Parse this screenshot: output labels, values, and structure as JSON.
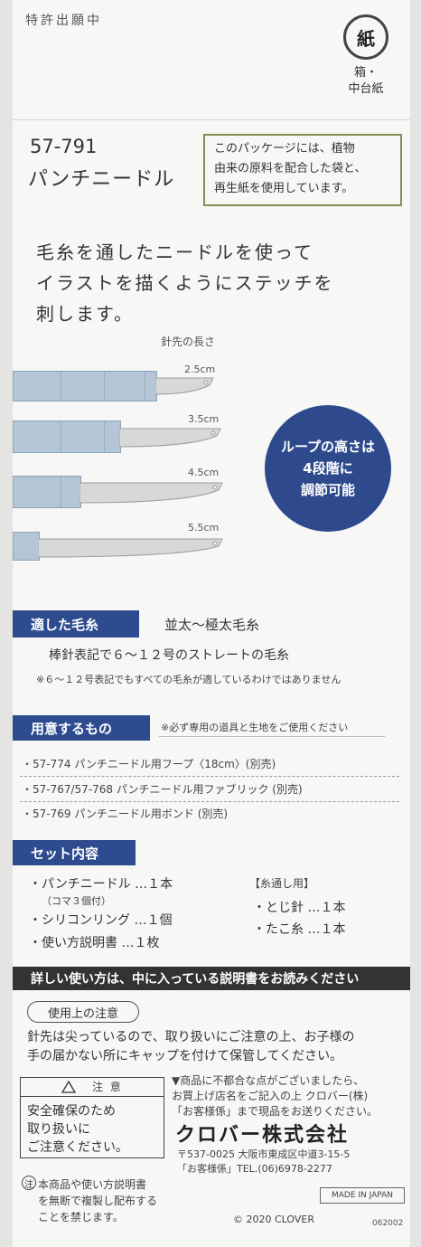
{
  "top": {
    "notice": "特許出願中",
    "recycle_mark": "紙",
    "recycle_caption_1": "箱・",
    "recycle_caption_2": "中台紙"
  },
  "product": {
    "code": "57-791",
    "name": "パンチニードル"
  },
  "eco_box": {
    "line1": "このパッケージには、植物",
    "line2": "由来の原料を配合した袋と、",
    "line3": "再生紙を使用しています。"
  },
  "description": {
    "line1": "毛糸を通したニードルを使って",
    "line2": "イラストを描くようにステッチを",
    "line3": "刺します。"
  },
  "needles": {
    "heading": "針先の長さ",
    "lengths": [
      "2.5cm",
      "3.5cm",
      "4.5cm",
      "5.5cm"
    ]
  },
  "circle": {
    "line1": "ループの高さは",
    "line2": "4段階に",
    "line3": "調節可能"
  },
  "yarn": {
    "title": "適した毛糸",
    "value": "並太～極太毛糸",
    "detail": "棒針表記で６～１２号のストレートの毛糸",
    "note": "※６～１２号表記でもすべての毛糸が適しているわけではありません"
  },
  "prepare": {
    "title": "用意するもの",
    "note": "※必ず専用の道具と生地をご使用ください",
    "items": [
      "・57-774 パンチニードル用フープ〈18cm〉(別売)",
      "・57-767/57-768 パンチニードル用ファブリック (別売)",
      "・57-769 パンチニードル用ボンド (別売)"
    ]
  },
  "set": {
    "title": "セット内容",
    "left_items": [
      "・パンチニードル …１本",
      "（コマ３個付）",
      "・シリコンリング …１個",
      "・使い方説明書 …１枚"
    ],
    "right_heading": "【糸通し用】",
    "right_items": [
      "・とじ針 …１本",
      "・たこ糸 …１本"
    ]
  },
  "instruction_bar": "詳しい使い方は、中に入っている説明書をお読みください",
  "caution": {
    "pill": "使用上の注意",
    "line1": "針先は尖っているので、取り扱いにご注意の上、お子様の",
    "line2": "手の届かない所にキャップを付けて保管してください。"
  },
  "warning_box": {
    "symbol": "!",
    "title": "注 意",
    "line1": "安全確保のため",
    "line2": "取り扱いに",
    "line3": "ご注意ください。"
  },
  "contact": {
    "line1": "▼商品に不都合な点がございましたら、",
    "line2": "お買上げ店名をご記入の上 クロバー(株)",
    "line3": "「お客様係」まで現品をお送りください。",
    "company": "クロバー株式会社",
    "address": "〒537-0025 大阪市東成区中道3-15-5",
    "tel": "「お客様係」TEL.(06)6978-2277"
  },
  "copyright_note": {
    "mark": "注",
    "line1": "本商品や使い方説明書",
    "line2": "を無断で複製し配布する",
    "line3": "ことを禁じます。"
  },
  "made_in": "MADE IN JAPAN",
  "copyright": "© 2020 CLOVER",
  "lot": "062002",
  "colors": {
    "navy": "#2d4b8e",
    "barrel": "#b4c5d6",
    "olive": "#8a8a55"
  }
}
